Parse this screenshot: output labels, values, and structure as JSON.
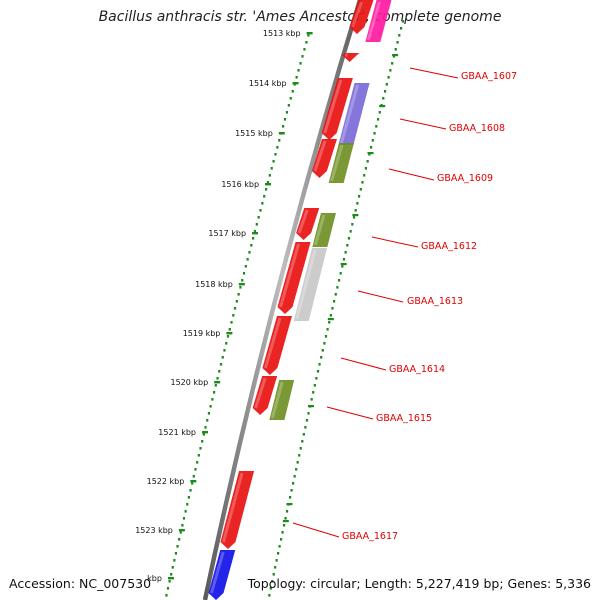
{
  "title": "Bacillus anthracis str. 'Ames Ancestor', complete genome",
  "footer": {
    "accession": "Accession: NC_007530",
    "stats": "Topology: circular; Length: 5,227,419 bp; Genes: 5,336"
  },
  "kbp_ticks": [
    "1513 kbp",
    "1514 kbp",
    "1515 kbp",
    "1516 kbp",
    "1517 kbp",
    "1518 kbp",
    "1519 kbp",
    "1520 kbp",
    "1521 kbp",
    "1522 kbp",
    "1523 kbp",
    "kbp"
  ],
  "gene_labels": [
    "GBAA_1607",
    "GBAA_1608",
    "GBAA_1609",
    "GBAA_1612",
    "GBAA_1613",
    "GBAA_1614",
    "GBAA_1615",
    "GBAA_1617"
  ],
  "colors": {
    "backbone": "#8c8c8c",
    "ticks": "#1c8a1c",
    "forward_gene": "#ee1111",
    "reverse_gene": "#ee1111",
    "label": "#e00000",
    "leader_line": "#e00000"
  },
  "features": [
    {
      "strand": "reverse",
      "color": "#e81010"
    },
    {
      "strand": "reverse",
      "color": "#e81010"
    },
    {
      "strand": "reverse",
      "color": "#e81010"
    },
    {
      "strand": "reverse",
      "color": "#e81010"
    },
    {
      "strand": "reverse",
      "color": "#e81010"
    },
    {
      "strand": "reverse",
      "color": "#e81010"
    },
    {
      "strand": "reverse",
      "color": "#e81010"
    },
    {
      "strand": "reverse",
      "color": "#e81010"
    },
    {
      "strand": "reverse",
      "color": "#e81010"
    },
    {
      "strand": "reverse",
      "color": "#1010e8"
    },
    {
      "strand": "forward",
      "color": "#ff1aa0"
    },
    {
      "strand": "forward",
      "color": "#7a6ad8"
    },
    {
      "strand": "forward",
      "color": "#6f8f22"
    },
    {
      "strand": "forward",
      "color": "#6f8f22"
    },
    {
      "strand": "forward",
      "color": "#c8c8c8"
    },
    {
      "strand": "forward",
      "color": "#6f8f22"
    }
  ]
}
